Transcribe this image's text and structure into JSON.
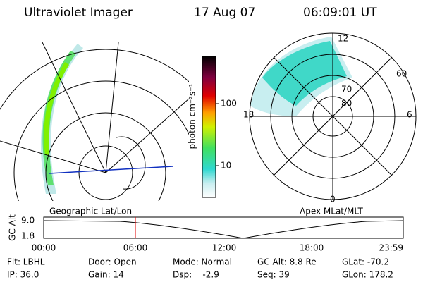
{
  "header": {
    "instrument": "Ultraviolet Imager",
    "date": "17 Aug 07",
    "time": "06:09:01 UT"
  },
  "colorbar": {
    "label": "photon cm⁻²s⁻¹",
    "ticks": [
      "100",
      "10"
    ]
  },
  "polar_plot": {
    "mlt_labels": [
      "12",
      "18",
      "6",
      "0"
    ],
    "lat_labels": [
      "80",
      "70",
      "60"
    ]
  },
  "panel_labels": {
    "left": "Geographic Lat/Lon",
    "right": "Apex MLat/MLT"
  },
  "timeline": {
    "axis_label": "GC Alt",
    "y_labels": [
      "9.0",
      "1.8"
    ],
    "x_labels": [
      "00:00",
      "06:00",
      "12:00",
      "18:00",
      "23:59"
    ]
  },
  "footer": {
    "rows": [
      [
        "Flt: LBHL",
        "Door: Open",
        "Mode: Normal",
        "GC Alt: 8.8 Re",
        "GLat: -70.2"
      ],
      [
        "IP: 36.0",
        "Gain: 14",
        "Dsp:    -2.9",
        "Seq: 39",
        "GLon: 178.2"
      ]
    ]
  }
}
